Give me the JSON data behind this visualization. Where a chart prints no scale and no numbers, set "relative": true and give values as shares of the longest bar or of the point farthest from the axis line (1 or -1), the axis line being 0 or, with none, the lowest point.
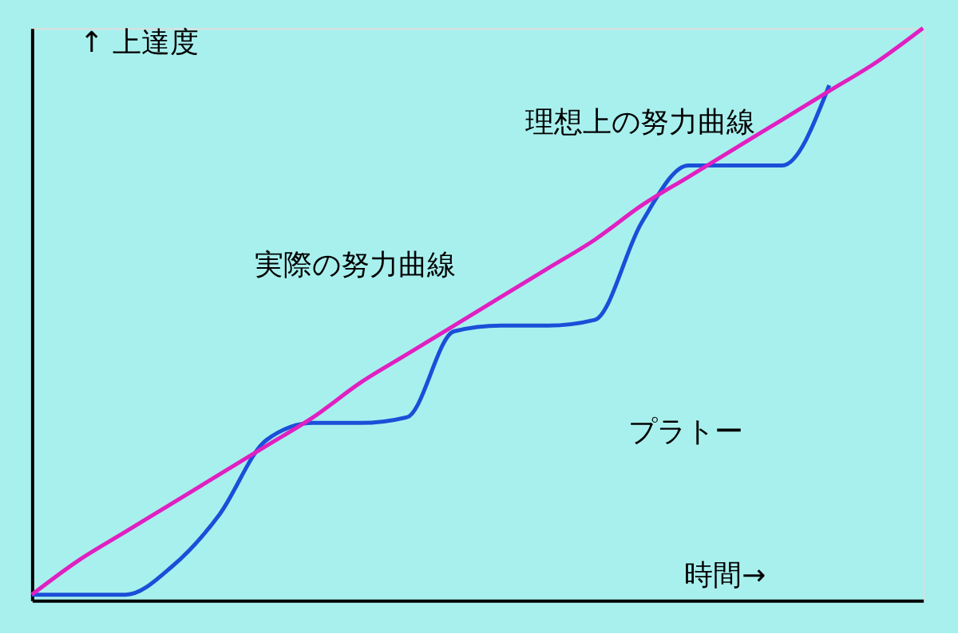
{
  "chart_data": {
    "type": "line",
    "relative": true,
    "xlabel": "時間→",
    "ylabel": "↑ 上達度",
    "categories": [
      null,
      null,
      null,
      null,
      null,
      null,
      null,
      null,
      null,
      null,
      null,
      null,
      null,
      null,
      null,
      null,
      null,
      null,
      null,
      null
    ],
    "series": [
      {
        "color": "#1a4fd8",
        "values": [
          0.01,
          0.01,
          0.01,
          0.06,
          0.15,
          0.28,
          0.31,
          0.31,
          0.32,
          0.47,
          0.48,
          0.48,
          0.49,
          0.66,
          0.76,
          0.76,
          0.76,
          0.9,
          null,
          null
        ]
      },
      {
        "color": "#e020c0",
        "values": [
          0.01,
          0.07,
          0.12,
          0.17,
          0.22,
          0.27,
          0.32,
          0.38,
          0.43,
          0.48,
          0.53,
          0.58,
          0.63,
          0.69,
          0.74,
          0.79,
          0.84,
          0.89,
          0.94,
          1.0
        ]
      }
    ],
    "annotations": [
      "理想上の努力曲線",
      "実際の努力曲線",
      "プラトー"
    ],
    "grid": false,
    "marker": "none",
    "line_style": "solid"
  }
}
